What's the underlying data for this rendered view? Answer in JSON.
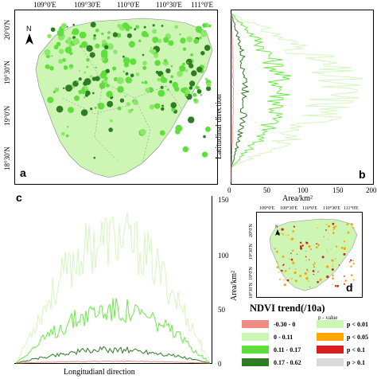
{
  "panel_a": {
    "letter": "a",
    "lon_ticks": [
      "109°0'E",
      "109°30'E",
      "110°0'E",
      "110°30'E",
      "111°0'E"
    ],
    "lat_ticks": [
      "20°0'N",
      "19°30'N",
      "19°0'N",
      "18°30'N"
    ],
    "north_label": "N"
  },
  "panel_b": {
    "letter": "b",
    "xlabel": "Area/km²",
    "ylabel": "Latitudinal direction",
    "x_ticks": [
      "0",
      "50",
      "100",
      "150",
      "200"
    ]
  },
  "panel_c": {
    "letter": "c",
    "xlabel": "Longitudianl direction",
    "ylabel": "Area/km²",
    "y_ticks": [
      "0",
      "50",
      "100",
      "150"
    ]
  },
  "panel_d": {
    "letter": "d",
    "lon_ticks": [
      "109°0'E",
      "109°30'E",
      "110°0'E",
      "110°30'E",
      "111°0'E"
    ],
    "lat_ticks": [
      "20°0'N",
      "19°30'N",
      "19°0'N",
      "18°30'N"
    ],
    "north_label": "N"
  },
  "legend": {
    "title": "NDVI trend(/10a)",
    "pvalue_header": "p - value",
    "trend_classes": [
      {
        "label": "-0.30 - 0",
        "color": "#f08b84"
      },
      {
        "label": "0 - 0.11",
        "color": "#cdf5b4"
      },
      {
        "label": "0.11 - 0.17",
        "color": "#5fdf3c"
      },
      {
        "label": "0.17 - 0.62",
        "color": "#2e7d22"
      }
    ],
    "pvalue_classes": [
      {
        "label": "p < 0.01",
        "color": "#cdf5b4"
      },
      {
        "label": "p < 0.05",
        "color": "#ffa500"
      },
      {
        "label": "p < 0.1",
        "color": "#d81e1e"
      },
      {
        "label": "p > 0.1",
        "color": "#d9d9d9"
      }
    ]
  },
  "chart_data": [
    {
      "type": "line",
      "panel": "b",
      "xlabel": "Area/km²",
      "ylabel": "Latitudinal direction",
      "xlim": [
        0,
        200
      ],
      "series": [
        {
          "color": "#d6f6c2",
          "peak": 190
        },
        {
          "color": "#6ee84a",
          "peak": 90
        },
        {
          "color": "#2e7d22",
          "peak": 25
        },
        {
          "color": "#f08b84",
          "peak": 3
        }
      ]
    },
    {
      "type": "line",
      "panel": "c",
      "xlabel": "Longitudianl direction",
      "ylabel": "Area/km²",
      "ylim": [
        0,
        150
      ],
      "series": [
        {
          "color": "#d6f6c2",
          "peak": 140
        },
        {
          "color": "#6ee84a",
          "peak": 60
        },
        {
          "color": "#2e7d22",
          "peak": 15
        },
        {
          "color": "#f08b84",
          "peak": 2
        }
      ]
    }
  ]
}
